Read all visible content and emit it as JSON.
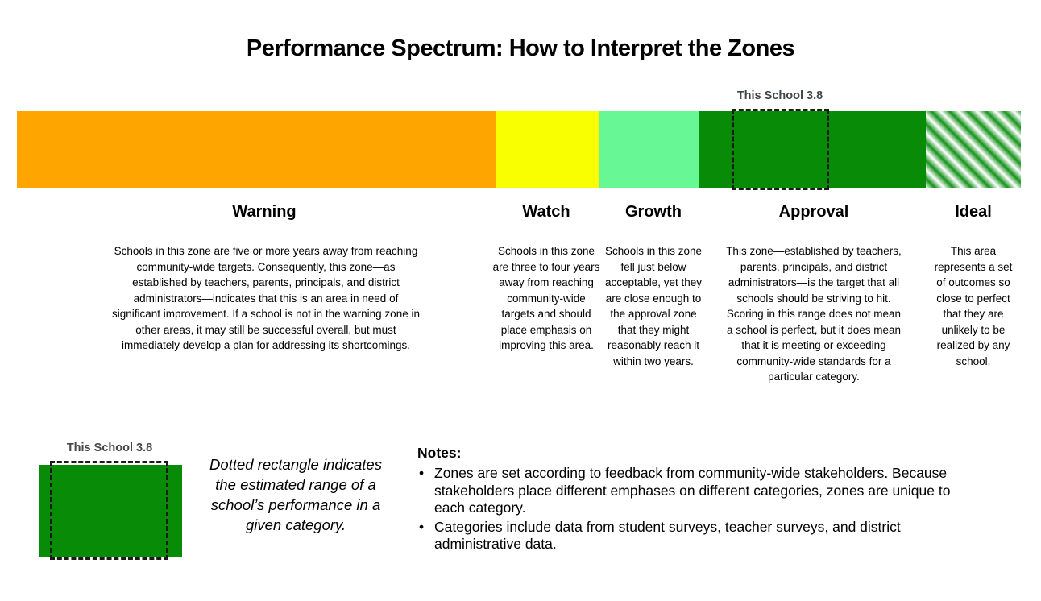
{
  "title": "Performance Spectrum: How to Interpret the Zones",
  "colors": {
    "warning": "#FFA500",
    "watch": "#F9FF00",
    "growth": "#68F795",
    "approval": "#088C08",
    "ideal_stripe": "#15931B",
    "marker_border": "#1A1A1A",
    "marker_label_text": "#43474B"
  },
  "school_marker": {
    "label": "This School 3.8"
  },
  "zones": [
    {
      "id": "warning",
      "label": "Warning",
      "description": "Schools in this zone are five or more years away from reaching community-wide targets. Consequently, this zone—as established by teachers, parents, principals, and district administrators—indicates that this is an area in need of significant improvement. If a school is not in the warning zone in other areas, it may still be successful overall, but must immediately develop a plan for addressing its shortcomings."
    },
    {
      "id": "watch",
      "label": "Watch",
      "description": "Schools in this zone are three to four years away from reaching community-wide targets and should place emphasis on improving this area."
    },
    {
      "id": "growth",
      "label": "Growth",
      "description": "Schools in this zone fell just below acceptable, yet they are close enough to the approval zone that they might reasonably reach it within two years."
    },
    {
      "id": "approval",
      "label": "Approval",
      "description": "This zone—established by teachers, parents, principals, and district administrators—is the target that all schools should be striving to hit. Scoring in this range does not mean a school is perfect, but it does mean that it is meeting or exceeding community-wide standards for a particular category."
    },
    {
      "id": "ideal",
      "label": "Ideal",
      "description": "This area represents a set of outcomes so close to perfect that they are unlikely to be realized by any school."
    }
  ],
  "legend": {
    "marker_label": "This School 3.8",
    "caption": "Dotted rectangle indicates the estimated range of a school’s performance in a given category."
  },
  "notes": {
    "heading": "Notes:",
    "bullet": "•",
    "items": [
      "Zones are set according to feedback from community-wide stakeholders. Because stakeholders place different emphases on different categories, zones are unique to each category.",
      "Categories include data from student surveys, teacher surveys, and district administrative data."
    ]
  }
}
